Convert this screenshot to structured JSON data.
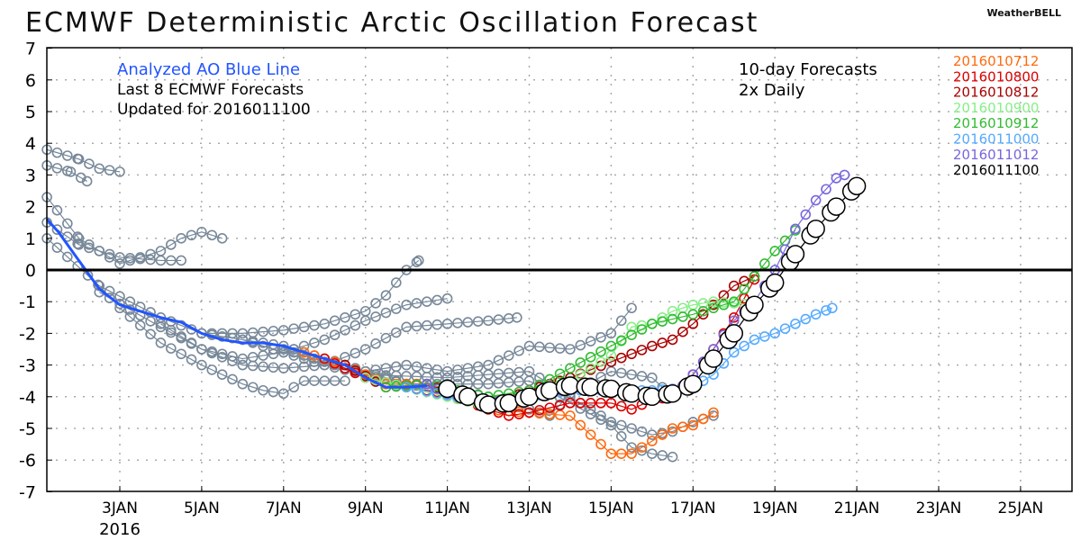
{
  "header": {
    "title": "ECMWF Deterministic Arctic Oscillation Forecast",
    "brand": "WeatherBELL"
  },
  "chart_data": {
    "type": "line",
    "title": "ECMWF Deterministic Arctic Oscillation Forecast",
    "ylim": [
      -7,
      7
    ],
    "xlim_day_of_jan": [
      1.22,
      26.25
    ],
    "yticks": [
      "7",
      "6",
      "5",
      "4",
      "3",
      "2",
      "1",
      "0",
      "-1",
      "-2",
      "-3",
      "-4",
      "-5",
      "-6",
      "-7"
    ],
    "xticks": [
      {
        "day": 3,
        "label": "3JAN"
      },
      {
        "day": 5,
        "label": "5JAN"
      },
      {
        "day": 7,
        "label": "7JAN"
      },
      {
        "day": 9,
        "label": "9JAN"
      },
      {
        "day": 11,
        "label": "11JAN"
      },
      {
        "day": 13,
        "label": "13JAN"
      },
      {
        "day": 15,
        "label": "15JAN"
      },
      {
        "day": 17,
        "label": "17JAN"
      },
      {
        "day": 19,
        "label": "19JAN"
      },
      {
        "day": 21,
        "label": "21JAN"
      },
      {
        "day": 23,
        "label": "23JAN"
      },
      {
        "day": 25,
        "label": "25JAN"
      }
    ],
    "year_label": "2016",
    "grid": true,
    "annotations": {
      "analyzed": "Analyzed AO Blue Line",
      "last8": "Last 8 ECMWF Forecasts",
      "updated": "Updated for 2016011100",
      "forecasts": "10-day Forecasts",
      "daily": "2x Daily"
    },
    "colors": {
      "analyzed": "#2255ff",
      "gray": "#778899",
      "zero": "#000000"
    },
    "analyzed": [
      [
        1.22,
        1.6
      ],
      [
        1.5,
        1.2
      ],
      [
        2,
        0.3
      ],
      [
        2.5,
        -0.6
      ],
      [
        3,
        -1.1
      ],
      [
        3.5,
        -1.3
      ],
      [
        4,
        -1.5
      ],
      [
        4.5,
        -1.65
      ],
      [
        5,
        -2.0
      ],
      [
        5.5,
        -2.2
      ],
      [
        6,
        -2.3
      ],
      [
        6.5,
        -2.3
      ],
      [
        7,
        -2.4
      ],
      [
        7.5,
        -2.6
      ],
      [
        8,
        -2.8
      ],
      [
        8.5,
        -3.0
      ],
      [
        9,
        -3.4
      ],
      [
        9.5,
        -3.7
      ],
      [
        10,
        -3.7
      ],
      [
        10.5,
        -3.65
      ]
    ],
    "series": [
      {
        "name": "2016010712",
        "color": "#ff6a10",
        "size": "small",
        "points": [
          [
            7.5,
            -2.6
          ],
          [
            8.5,
            -3.0
          ],
          [
            9.5,
            -3.6
          ],
          [
            10.5,
            -3.6
          ],
          [
            12,
            -4.4
          ],
          [
            13,
            -4.5
          ],
          [
            14,
            -4.6
          ],
          [
            14.5,
            -5.2
          ],
          [
            15,
            -5.8
          ],
          [
            15.5,
            -5.8
          ],
          [
            16,
            -5.4
          ],
          [
            16.5,
            -5.0
          ],
          [
            17,
            -4.9
          ],
          [
            17.5,
            -4.5
          ]
        ]
      },
      {
        "name": "2016010800",
        "color": "#dd0000",
        "size": "small",
        "points": [
          [
            8,
            -2.8
          ],
          [
            9,
            -3.4
          ],
          [
            10,
            -3.7
          ],
          [
            11,
            -3.9
          ],
          [
            12,
            -4.4
          ],
          [
            12.5,
            -4.6
          ],
          [
            13,
            -4.5
          ],
          [
            14,
            -4.2
          ],
          [
            15,
            -4.2
          ],
          [
            15.5,
            -4.4
          ],
          [
            16,
            -4.1
          ],
          [
            16.5,
            -4.0
          ],
          [
            17,
            -3.3
          ],
          [
            17.5,
            -2.5
          ],
          [
            18,
            -1.5
          ],
          [
            18.5,
            -0.3
          ]
        ]
      },
      {
        "name": "2016010812",
        "color": "#aa0000",
        "size": "small",
        "points": [
          [
            8.5,
            -3.0
          ],
          [
            9.5,
            -3.7
          ],
          [
            10.5,
            -3.6
          ],
          [
            12,
            -4.3
          ],
          [
            13,
            -3.8
          ],
          [
            14,
            -3.4
          ],
          [
            15,
            -2.9
          ],
          [
            16,
            -2.4
          ],
          [
            16.5,
            -2.2
          ],
          [
            17,
            -1.7
          ],
          [
            17.5,
            -1.1
          ],
          [
            18,
            -0.5
          ],
          [
            18.5,
            -0.2
          ]
        ]
      },
      {
        "name": "2016010900",
        "color": "#88ee88",
        "size": "small",
        "points": [
          [
            9,
            -3.4
          ],
          [
            10,
            -3.7
          ],
          [
            12,
            -4.3
          ],
          [
            13,
            -4.0
          ],
          [
            14,
            -3.5
          ],
          [
            15,
            -2.7
          ],
          [
            15.5,
            -1.8
          ],
          [
            16,
            -1.7
          ],
          [
            16.5,
            -1.3
          ],
          [
            17,
            -1.1
          ],
          [
            17.5,
            -1.0
          ],
          [
            18.5,
            -1.1
          ]
        ]
      },
      {
        "name": "2016010912",
        "color": "#33bb33",
        "size": "small",
        "points": [
          [
            9.5,
            -3.7
          ],
          [
            10.5,
            -3.6
          ],
          [
            12,
            -4.0
          ],
          [
            13,
            -3.8
          ],
          [
            14,
            -3.1
          ],
          [
            15,
            -2.4
          ],
          [
            16,
            -1.7
          ],
          [
            17,
            -1.4
          ],
          [
            17.5,
            -1.2
          ],
          [
            18,
            -1.0
          ],
          [
            18.5,
            -0.2
          ],
          [
            19,
            0.6
          ],
          [
            19.5,
            1.25
          ]
        ]
      },
      {
        "name": "2016011000",
        "color": "#55aaff",
        "size": "small",
        "points": [
          [
            10,
            -3.7
          ],
          [
            12,
            -4.2
          ],
          [
            14,
            -3.8
          ],
          [
            15,
            -3.8
          ],
          [
            16,
            -3.8
          ],
          [
            17,
            -3.7
          ],
          [
            17.5,
            -3.3
          ],
          [
            18,
            -2.6
          ],
          [
            18.5,
            -2.2
          ],
          [
            19,
            -2.0
          ],
          [
            19.5,
            -1.7
          ],
          [
            20,
            -1.4
          ],
          [
            20.4,
            -1.2
          ]
        ]
      },
      {
        "name": "2016011012",
        "color": "#7766dd",
        "size": "small",
        "points": [
          [
            10.5,
            -3.6
          ],
          [
            11,
            -3.9
          ],
          [
            12,
            -4.2
          ],
          [
            13,
            -4.0
          ],
          [
            14,
            -3.7
          ],
          [
            15,
            -3.8
          ],
          [
            16,
            -4.0
          ],
          [
            16.5,
            -4.0
          ],
          [
            17,
            -3.3
          ],
          [
            17.5,
            -2.5
          ],
          [
            18,
            -1.6
          ],
          [
            18.5,
            -1.0
          ],
          [
            19,
            0.0
          ],
          [
            19.5,
            1.3
          ],
          [
            20,
            2.2
          ],
          [
            20.5,
            2.9
          ],
          [
            20.7,
            3.0
          ]
        ]
      },
      {
        "name": "2016011100",
        "color": "#000000",
        "size": "large",
        "points": [
          [
            11,
            -3.75
          ],
          [
            11.5,
            -4.0
          ],
          [
            12,
            -4.25
          ],
          [
            12.5,
            -4.2
          ],
          [
            13,
            -4.0
          ],
          [
            13.5,
            -3.8
          ],
          [
            14,
            -3.65
          ],
          [
            14.5,
            -3.7
          ],
          [
            15,
            -3.75
          ],
          [
            15.5,
            -3.9
          ],
          [
            16,
            -4.0
          ],
          [
            16.5,
            -3.9
          ],
          [
            17,
            -3.6
          ],
          [
            17.5,
            -2.8
          ],
          [
            18,
            -2.0
          ],
          [
            18.5,
            -1.1
          ],
          [
            19,
            -0.4
          ],
          [
            19.5,
            0.5
          ],
          [
            20,
            1.3
          ],
          [
            20.5,
            2.0
          ],
          [
            21,
            2.65
          ]
        ]
      }
    ],
    "older_forecasts": [
      [
        [
          1.22,
          3.8
        ],
        [
          2,
          3.5
        ],
        [
          2.5,
          3.2
        ],
        [
          3,
          3.1
        ]
      ],
      [
        [
          1.22,
          3.3
        ],
        [
          1.8,
          3.1
        ],
        [
          2.2,
          2.8
        ]
      ],
      [
        [
          1.22,
          2.3
        ],
        [
          2,
          1.0
        ],
        [
          3,
          0.2
        ],
        [
          4,
          0.6
        ],
        [
          4.5,
          1.0
        ],
        [
          5,
          1.2
        ],
        [
          5.5,
          1.0
        ]
      ],
      [
        [
          1.22,
          1.5
        ],
        [
          2,
          0.8
        ],
        [
          3,
          0.4
        ],
        [
          4,
          0.3
        ],
        [
          4.5,
          0.3
        ]
      ],
      [
        [
          1.22,
          1.0
        ],
        [
          2.5,
          -0.5
        ],
        [
          4,
          -1.5
        ],
        [
          5,
          -2.0
        ],
        [
          6,
          -2.0
        ],
        [
          7,
          -1.9
        ],
        [
          8,
          -1.7
        ],
        [
          9,
          -1.3
        ],
        [
          9.5,
          -0.8
        ],
        [
          10,
          0.0
        ],
        [
          10.3,
          0.3
        ]
      ],
      [
        [
          2.5,
          -0.7
        ],
        [
          4,
          -1.8
        ],
        [
          5,
          -2.5
        ],
        [
          6,
          -3.0
        ],
        [
          7,
          -3.1
        ],
        [
          8,
          -3.0
        ],
        [
          9,
          -2.5
        ],
        [
          10,
          -1.8
        ],
        [
          11,
          -1.7
        ],
        [
          12,
          -1.6
        ],
        [
          12.7,
          -1.5
        ]
      ],
      [
        [
          3,
          -1.2
        ],
        [
          4,
          -2.3
        ],
        [
          5,
          -3.0
        ],
        [
          6,
          -3.6
        ],
        [
          6.5,
          -3.8
        ],
        [
          7,
          -3.9
        ],
        [
          7.5,
          -3.5
        ],
        [
          8.5,
          -3.5
        ]
      ],
      [
        [
          4,
          -1.7
        ],
        [
          5,
          -2.5
        ],
        [
          6,
          -2.8
        ],
        [
          7,
          -2.6
        ],
        [
          8,
          -2.2
        ],
        [
          9,
          -1.6
        ],
        [
          10,
          -1.1
        ],
        [
          11,
          -0.9
        ]
      ],
      [
        [
          5,
          -2.0
        ],
        [
          7,
          -2.4
        ],
        [
          9,
          -3.2
        ],
        [
          10,
          -3.0
        ],
        [
          11,
          -3.2
        ],
        [
          12,
          -3.0
        ],
        [
          13,
          -2.4
        ],
        [
          14,
          -2.5
        ],
        [
          15,
          -2.0
        ],
        [
          15.5,
          -1.2
        ]
      ],
      [
        [
          6,
          -2.2
        ],
        [
          8,
          -3.0
        ],
        [
          10,
          -3.6
        ],
        [
          12,
          -4.0
        ],
        [
          13,
          -4.4
        ],
        [
          13.5,
          -4.6
        ],
        [
          14,
          -3.9
        ],
        [
          15,
          -3.2
        ],
        [
          16,
          -3.4
        ],
        [
          16.5,
          -4.0
        ]
      ],
      [
        [
          7,
          -2.5
        ],
        [
          9,
          -3.3
        ],
        [
          11,
          -3.4
        ],
        [
          13,
          -3.2
        ],
        [
          14,
          -4.0
        ],
        [
          15,
          -4.8
        ],
        [
          16,
          -5.2
        ],
        [
          16.5,
          -5.1
        ],
        [
          17,
          -4.8
        ],
        [
          17.5,
          -4.6
        ]
      ],
      [
        [
          8,
          -2.8
        ],
        [
          10,
          -3.6
        ],
        [
          12,
          -3.6
        ],
        [
          13,
          -3.5
        ],
        [
          14,
          -4.2
        ],
        [
          15,
          -4.9
        ],
        [
          15.5,
          -5.6
        ],
        [
          16,
          -5.8
        ],
        [
          16.5,
          -5.9
        ]
      ]
    ]
  }
}
